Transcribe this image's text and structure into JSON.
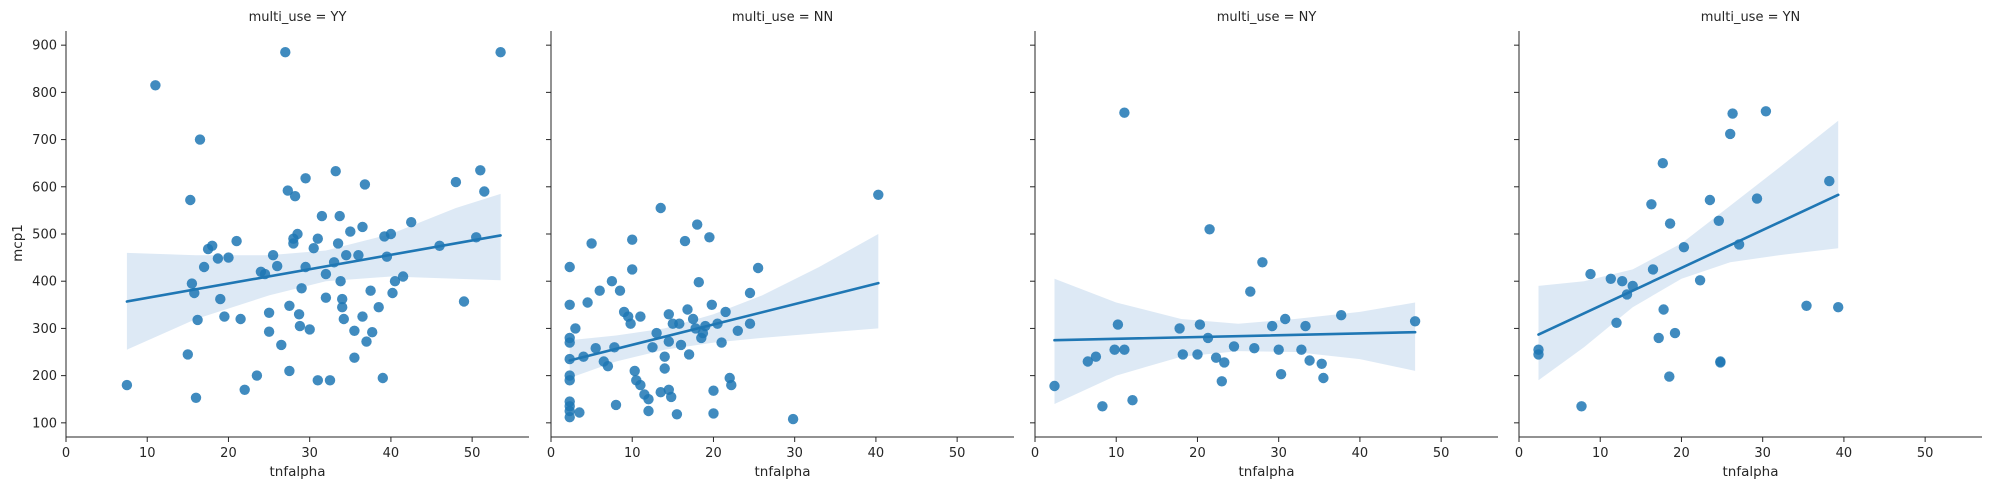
{
  "colors": {
    "point": "#1f77b4",
    "line": "#1f77b4",
    "band": "#c6dbef",
    "axis": "#262626"
  },
  "chart_data": [
    {
      "type": "scatter",
      "title": "multi_use = YY",
      "xlabel": "tnfalpha",
      "ylabel": "mcp1",
      "xlim": [
        0,
        57
      ],
      "ylim": [
        70,
        930
      ],
      "xticks": [
        0,
        10,
        20,
        30,
        40,
        50
      ],
      "yticks": [
        100,
        200,
        300,
        400,
        500,
        600,
        700,
        800,
        900
      ],
      "points": [
        [
          7.5,
          180
        ],
        [
          11,
          815
        ],
        [
          15,
          245
        ],
        [
          15.3,
          572
        ],
        [
          15.5,
          395
        ],
        [
          15.8,
          375
        ],
        [
          16,
          153
        ],
        [
          16.2,
          318
        ],
        [
          16.5,
          700
        ],
        [
          17,
          430
        ],
        [
          17.5,
          468
        ],
        [
          18,
          475
        ],
        [
          18.7,
          448
        ],
        [
          19,
          362
        ],
        [
          19.5,
          325
        ],
        [
          20,
          450
        ],
        [
          21,
          485
        ],
        [
          21.5,
          320
        ],
        [
          22,
          170
        ],
        [
          23.5,
          200
        ],
        [
          24,
          420
        ],
        [
          24.5,
          415
        ],
        [
          25,
          333
        ],
        [
          25,
          293
        ],
        [
          25.5,
          455
        ],
        [
          26,
          432
        ],
        [
          26.5,
          265
        ],
        [
          27,
          885
        ],
        [
          27.3,
          592
        ],
        [
          27.5,
          348
        ],
        [
          27.5,
          210
        ],
        [
          28,
          490
        ],
        [
          28,
          480
        ],
        [
          28.2,
          580
        ],
        [
          28.5,
          500
        ],
        [
          28.7,
          330
        ],
        [
          28.8,
          305
        ],
        [
          29,
          385
        ],
        [
          29.5,
          618
        ],
        [
          29.5,
          430
        ],
        [
          30,
          298
        ],
        [
          30.5,
          470
        ],
        [
          31,
          190
        ],
        [
          31,
          490
        ],
        [
          31.5,
          538
        ],
        [
          32,
          415
        ],
        [
          32,
          365
        ],
        [
          32.5,
          190
        ],
        [
          33,
          440
        ],
        [
          33.2,
          633
        ],
        [
          33.5,
          480
        ],
        [
          33.7,
          538
        ],
        [
          33.8,
          400
        ],
        [
          34,
          362
        ],
        [
          34,
          345
        ],
        [
          34.2,
          320
        ],
        [
          34.5,
          455
        ],
        [
          35,
          505
        ],
        [
          35.5,
          295
        ],
        [
          35.5,
          238
        ],
        [
          36,
          455
        ],
        [
          36.5,
          515
        ],
        [
          36.5,
          325
        ],
        [
          36.8,
          605
        ],
        [
          37,
          272
        ],
        [
          37.5,
          380
        ],
        [
          37.7,
          292
        ],
        [
          38.5,
          345
        ],
        [
          39,
          195
        ],
        [
          39.2,
          495
        ],
        [
          39.5,
          452
        ],
        [
          40,
          500
        ],
        [
          40.2,
          375
        ],
        [
          40.5,
          400
        ],
        [
          41.5,
          410
        ],
        [
          42.5,
          525
        ],
        [
          46,
          475
        ],
        [
          48,
          610
        ],
        [
          49,
          357
        ],
        [
          50.5,
          493
        ],
        [
          51,
          635
        ],
        [
          51.5,
          590
        ],
        [
          53.5,
          885
        ]
      ],
      "fit": {
        "x": [
          7.5,
          53.5
        ],
        "y": [
          357,
          497
        ]
      },
      "ci": {
        "x": [
          7.5,
          16,
          25,
          32,
          40,
          48,
          53.5
        ],
        "lower": [
          255,
          320,
          370,
          400,
          410,
          405,
          402
        ],
        "upper": [
          460,
          455,
          455,
          465,
          500,
          555,
          585
        ]
      }
    },
    {
      "type": "scatter",
      "title": "multi_use = NN",
      "xlabel": "tnfalpha",
      "ylabel": "",
      "xlim": [
        0,
        57
      ],
      "ylim": [
        70,
        930
      ],
      "xticks": [
        0,
        10,
        20,
        30,
        40,
        50
      ],
      "yticks": [
        100,
        200,
        300,
        400,
        500,
        600,
        700,
        800,
        900
      ],
      "points": [
        [
          2.3,
          430
        ],
        [
          2.3,
          350
        ],
        [
          2.3,
          280
        ],
        [
          2.3,
          270
        ],
        [
          2.3,
          235
        ],
        [
          2.3,
          200
        ],
        [
          2.3,
          190
        ],
        [
          2.3,
          145
        ],
        [
          2.3,
          135
        ],
        [
          2.3,
          125
        ],
        [
          2.3,
          112
        ],
        [
          3,
          300
        ],
        [
          3.5,
          122
        ],
        [
          4,
          240
        ],
        [
          4.5,
          355
        ],
        [
          5,
          480
        ],
        [
          5.5,
          258
        ],
        [
          6,
          380
        ],
        [
          6.5,
          230
        ],
        [
          7,
          220
        ],
        [
          7.5,
          400
        ],
        [
          7.8,
          260
        ],
        [
          8,
          138
        ],
        [
          8.5,
          380
        ],
        [
          9,
          335
        ],
        [
          9.5,
          325
        ],
        [
          9.8,
          310
        ],
        [
          10,
          425
        ],
        [
          10,
          488
        ],
        [
          10.3,
          210
        ],
        [
          10.5,
          190
        ],
        [
          11,
          180
        ],
        [
          11,
          325
        ],
        [
          11.5,
          160
        ],
        [
          12,
          150
        ],
        [
          12,
          125
        ],
        [
          12.5,
          260
        ],
        [
          13,
          290
        ],
        [
          13.5,
          555
        ],
        [
          13.5,
          165
        ],
        [
          14,
          240
        ],
        [
          14,
          215
        ],
        [
          14.5,
          330
        ],
        [
          14.5,
          272
        ],
        [
          14.5,
          170
        ],
        [
          14.8,
          155
        ],
        [
          15,
          310
        ],
        [
          15.5,
          118
        ],
        [
          15.8,
          310
        ],
        [
          16,
          265
        ],
        [
          16.5,
          485
        ],
        [
          16.8,
          340
        ],
        [
          17,
          245
        ],
        [
          17.5,
          320
        ],
        [
          17.8,
          300
        ],
        [
          18,
          520
        ],
        [
          18.2,
          398
        ],
        [
          18.5,
          280
        ],
        [
          18.7,
          290
        ],
        [
          19,
          305
        ],
        [
          19.5,
          493
        ],
        [
          19.8,
          350
        ],
        [
          20,
          168
        ],
        [
          20,
          120
        ],
        [
          20.5,
          310
        ],
        [
          21,
          270
        ],
        [
          21.5,
          335
        ],
        [
          22,
          195
        ],
        [
          22.2,
          180
        ],
        [
          23,
          295
        ],
        [
          24.5,
          375
        ],
        [
          24.5,
          310
        ],
        [
          25.5,
          428
        ],
        [
          29.8,
          108
        ],
        [
          40.3,
          583
        ]
      ],
      "fit": {
        "x": [
          2.3,
          40.3
        ],
        "y": [
          232,
          396
        ]
      },
      "ci": {
        "x": [
          2.3,
          8,
          14,
          20,
          26,
          33,
          40.3
        ],
        "lower": [
          195,
          230,
          255,
          270,
          280,
          290,
          300
        ],
        "upper": [
          275,
          285,
          300,
          330,
          370,
          430,
          500
        ]
      }
    },
    {
      "type": "scatter",
      "title": "multi_use = NY",
      "xlabel": "tnfalpha",
      "ylabel": "",
      "xlim": [
        0,
        57
      ],
      "ylim": [
        70,
        930
      ],
      "xticks": [
        0,
        10,
        20,
        30,
        40,
        50
      ],
      "yticks": [
        100,
        200,
        300,
        400,
        500,
        600,
        700,
        800,
        900
      ],
      "points": [
        [
          2.4,
          178
        ],
        [
          6.5,
          230
        ],
        [
          7.5,
          240
        ],
        [
          8.3,
          135
        ],
        [
          9.8,
          255
        ],
        [
          10.2,
          308
        ],
        [
          11,
          255
        ],
        [
          11,
          757
        ],
        [
          12,
          148
        ],
        [
          17.8,
          300
        ],
        [
          18.2,
          245
        ],
        [
          20,
          245
        ],
        [
          20.3,
          308
        ],
        [
          21.3,
          280
        ],
        [
          21.5,
          510
        ],
        [
          22.3,
          238
        ],
        [
          23,
          188
        ],
        [
          23.3,
          228
        ],
        [
          24.5,
          262
        ],
        [
          26.5,
          378
        ],
        [
          27,
          258
        ],
        [
          28,
          440
        ],
        [
          29.2,
          305
        ],
        [
          30,
          255
        ],
        [
          30.3,
          203
        ],
        [
          30.8,
          320
        ],
        [
          32.8,
          255
        ],
        [
          33.3,
          305
        ],
        [
          33.8,
          232
        ],
        [
          35.3,
          225
        ],
        [
          35.5,
          195
        ],
        [
          37.7,
          328
        ],
        [
          46.8,
          315
        ]
      ],
      "fit": {
        "x": [
          2.4,
          46.8
        ],
        "y": [
          275,
          292
        ]
      },
      "ci": {
        "x": [
          2.4,
          10,
          18,
          25,
          32,
          40,
          46.8
        ],
        "lower": [
          140,
          200,
          240,
          252,
          250,
          235,
          210
        ],
        "upper": [
          405,
          355,
          320,
          310,
          320,
          335,
          355
        ]
      }
    },
    {
      "type": "scatter",
      "title": "multi_use = YN",
      "xlabel": "tnfalpha",
      "ylabel": "",
      "xlim": [
        0,
        57
      ],
      "ylim": [
        70,
        930
      ],
      "xticks": [
        0,
        10,
        20,
        30,
        40,
        50
      ],
      "yticks": [
        100,
        200,
        300,
        400,
        500,
        600,
        700,
        800,
        900
      ],
      "points": [
        [
          2.4,
          255
        ],
        [
          2.4,
          245
        ],
        [
          7.7,
          135
        ],
        [
          8.8,
          415
        ],
        [
          11.3,
          405
        ],
        [
          12,
          312
        ],
        [
          12.7,
          400
        ],
        [
          13.3,
          372
        ],
        [
          14,
          390
        ],
        [
          16.3,
          563
        ],
        [
          16.5,
          425
        ],
        [
          17.2,
          280
        ],
        [
          17.7,
          650
        ],
        [
          17.8,
          340
        ],
        [
          18.5,
          198
        ],
        [
          18.6,
          522
        ],
        [
          19.2,
          290
        ],
        [
          20.3,
          472
        ],
        [
          22.3,
          402
        ],
        [
          23.5,
          572
        ],
        [
          24.6,
          528
        ],
        [
          24.8,
          230
        ],
        [
          24.8,
          228
        ],
        [
          26,
          712
        ],
        [
          26.3,
          755
        ],
        [
          27.1,
          478
        ],
        [
          29.3,
          575
        ],
        [
          30.4,
          760
        ],
        [
          35.4,
          348
        ],
        [
          38.2,
          612
        ],
        [
          39.3,
          345
        ]
      ],
      "fit": {
        "x": [
          2.4,
          39.3
        ],
        "y": [
          287,
          583
        ]
      },
      "ci": {
        "x": [
          2.4,
          8,
          14,
          20,
          26,
          32,
          39.3
        ],
        "lower": [
          190,
          260,
          345,
          405,
          440,
          455,
          470
        ],
        "upper": [
          390,
          400,
          425,
          480,
          560,
          640,
          740
        ]
      }
    }
  ]
}
